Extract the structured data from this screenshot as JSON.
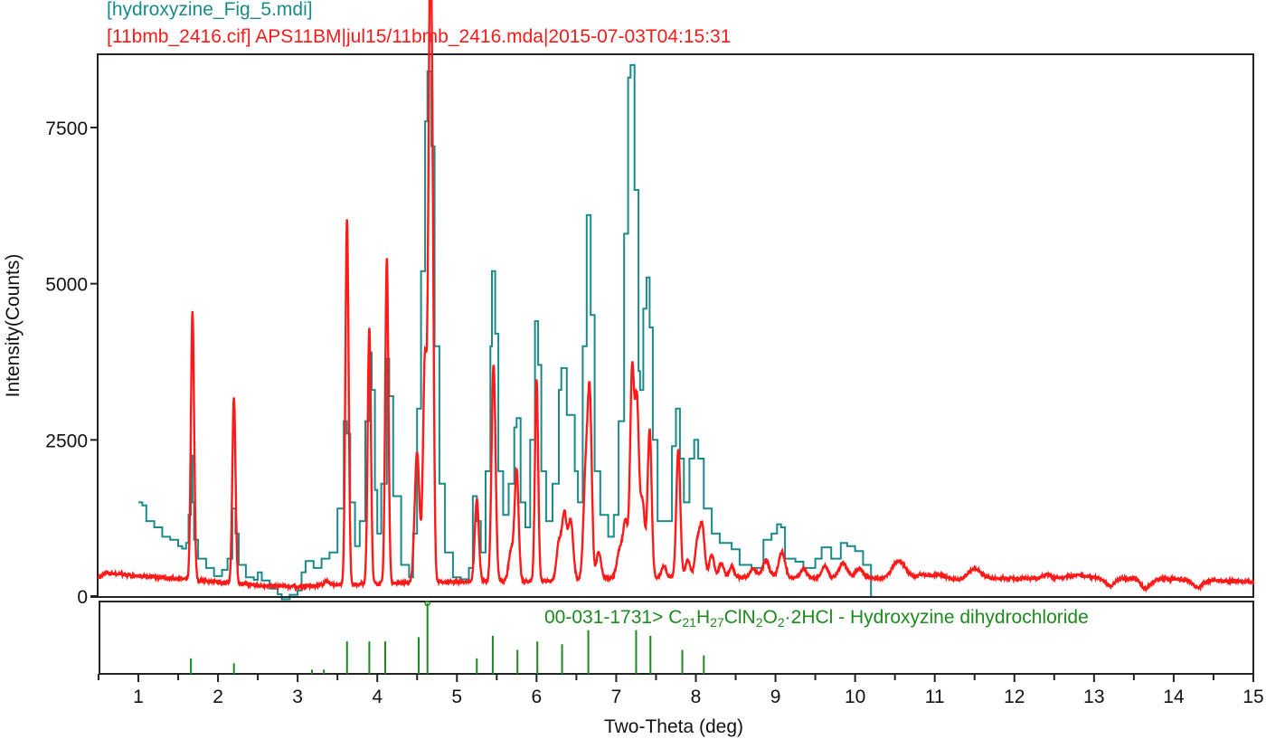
{
  "legend": {
    "teal_label": "[hydroxyzine_Fig_5.mdi]",
    "red_label": "[11bmb_2416.cif] APS11BM|jul15/11bmb_2416.mda|2015-07-03T04:15:31"
  },
  "reference": {
    "id": "00-031-1731>",
    "formula_parts": [
      "C",
      "21",
      "H",
      "27",
      "ClN",
      "2",
      "O",
      "2",
      "·2HCl - Hydroxyzine dihydrochloride"
    ]
  },
  "colors": {
    "teal": "#1a8a8a",
    "red": "#ff1a1a",
    "green": "#1c8a1c",
    "axis": "#111111"
  },
  "chart_data": {
    "type": "line",
    "title": "",
    "xlabel": "Two-Theta (deg)",
    "ylabel": "Intensity(Counts)",
    "xlim": [
      0.5,
      15
    ],
    "ylim": [
      0,
      8700
    ],
    "x_ticks": [
      1,
      2,
      3,
      4,
      5,
      6,
      7,
      8,
      9,
      10,
      11,
      12,
      13,
      14,
      15
    ],
    "y_ticks": [
      0,
      2500,
      5000,
      7500
    ],
    "grid": false,
    "legend_position": "top-left (above plot)",
    "series": [
      {
        "name": "[hydroxyzine_Fig_5.mdi]",
        "color": "#1a8a8a",
        "x_range": [
          1.0,
          10.2
        ],
        "points": [
          [
            1.0,
            1500
          ],
          [
            1.05,
            1450
          ],
          [
            1.1,
            1200
          ],
          [
            1.2,
            1100
          ],
          [
            1.3,
            950
          ],
          [
            1.4,
            900
          ],
          [
            1.5,
            800
          ],
          [
            1.55,
            760
          ],
          [
            1.6,
            850
          ],
          [
            1.63,
            1300
          ],
          [
            1.66,
            2250
          ],
          [
            1.68,
            1500
          ],
          [
            1.7,
            900
          ],
          [
            1.75,
            600
          ],
          [
            1.85,
            450
          ],
          [
            1.95,
            320
          ],
          [
            2.05,
            420
          ],
          [
            2.12,
            600
          ],
          [
            2.18,
            1400
          ],
          [
            2.22,
            1000
          ],
          [
            2.26,
            500
          ],
          [
            2.35,
            300
          ],
          [
            2.45,
            260
          ],
          [
            2.5,
            380
          ],
          [
            2.55,
            250
          ],
          [
            2.65,
            120
          ],
          [
            2.75,
            30
          ],
          [
            2.8,
            -50
          ],
          [
            2.9,
            20
          ],
          [
            3.0,
            90
          ],
          [
            3.05,
            380
          ],
          [
            3.1,
            560
          ],
          [
            3.2,
            450
          ],
          [
            3.3,
            600
          ],
          [
            3.4,
            700
          ],
          [
            3.5,
            1400
          ],
          [
            3.58,
            2800
          ],
          [
            3.62,
            2600
          ],
          [
            3.66,
            1500
          ],
          [
            3.72,
            800
          ],
          [
            3.78,
            1200
          ],
          [
            3.85,
            2800
          ],
          [
            3.9,
            3900
          ],
          [
            3.93,
            3300
          ],
          [
            3.97,
            1700
          ],
          [
            4.0,
            1000
          ],
          [
            4.05,
            1800
          ],
          [
            4.12,
            3800
          ],
          [
            4.15,
            3200
          ],
          [
            4.2,
            1600
          ],
          [
            4.3,
            500
          ],
          [
            4.4,
            300
          ],
          [
            4.45,
            1000
          ],
          [
            4.5,
            3000
          ],
          [
            4.55,
            5200
          ],
          [
            4.6,
            7600
          ],
          [
            4.63,
            8400
          ],
          [
            4.68,
            7200
          ],
          [
            4.72,
            4000
          ],
          [
            4.78,
            1800
          ],
          [
            4.85,
            700
          ],
          [
            4.95,
            300
          ],
          [
            5.05,
            270
          ],
          [
            5.15,
            450
          ],
          [
            5.2,
            1600
          ],
          [
            5.25,
            1200
          ],
          [
            5.3,
            700
          ],
          [
            5.36,
            2000
          ],
          [
            5.42,
            4000
          ],
          [
            5.44,
            5200
          ],
          [
            5.48,
            4200
          ],
          [
            5.52,
            2000
          ],
          [
            5.58,
            1300
          ],
          [
            5.65,
            1800
          ],
          [
            5.72,
            2700
          ],
          [
            5.75,
            2850
          ],
          [
            5.8,
            1500
          ],
          [
            5.86,
            1100
          ],
          [
            5.92,
            2500
          ],
          [
            5.98,
            4400
          ],
          [
            6.02,
            3700
          ],
          [
            6.06,
            2000
          ],
          [
            6.12,
            1200
          ],
          [
            6.2,
            1800
          ],
          [
            6.28,
            3300
          ],
          [
            6.31,
            3650
          ],
          [
            6.38,
            2900
          ],
          [
            6.48,
            2000
          ],
          [
            6.52,
            1500
          ],
          [
            6.58,
            4000
          ],
          [
            6.63,
            6100
          ],
          [
            6.68,
            4500
          ],
          [
            6.73,
            2000
          ],
          [
            6.8,
            1300
          ],
          [
            6.9,
            950
          ],
          [
            6.97,
            1300
          ],
          [
            7.03,
            2800
          ],
          [
            7.1,
            5800
          ],
          [
            7.15,
            8300
          ],
          [
            7.18,
            8500
          ],
          [
            7.23,
            6500
          ],
          [
            7.28,
            3600
          ],
          [
            7.3,
            3300
          ],
          [
            7.34,
            4600
          ],
          [
            7.38,
            5100
          ],
          [
            7.42,
            4300
          ],
          [
            7.46,
            2500
          ],
          [
            7.52,
            1200
          ],
          [
            7.6,
            1200
          ],
          [
            7.7,
            2400
          ],
          [
            7.75,
            3000
          ],
          [
            7.8,
            2200
          ],
          [
            7.85,
            1500
          ],
          [
            7.92,
            2200
          ],
          [
            7.98,
            2500
          ],
          [
            8.03,
            2200
          ],
          [
            8.1,
            1400
          ],
          [
            8.2,
            1000
          ],
          [
            8.3,
            850
          ],
          [
            8.45,
            750
          ],
          [
            8.55,
            500
          ],
          [
            8.7,
            450
          ],
          [
            8.85,
            900
          ],
          [
            8.95,
            1000
          ],
          [
            9.02,
            1150
          ],
          [
            9.07,
            1100
          ],
          [
            9.12,
            600
          ],
          [
            9.25,
            550
          ],
          [
            9.35,
            450
          ],
          [
            9.5,
            600
          ],
          [
            9.58,
            780
          ],
          [
            9.7,
            600
          ],
          [
            9.82,
            850
          ],
          [
            9.9,
            800
          ],
          [
            10.0,
            720
          ],
          [
            10.1,
            500
          ],
          [
            10.2,
            400
          ],
          [
            10.2,
            0
          ]
        ]
      },
      {
        "name": "[11bmb_2416.cif] APS11BM|jul15/11bmb_2416.mda|2015-07-03T04:15:31",
        "color": "#ff1a1a",
        "x_range": [
          0.5,
          15
        ],
        "baseline": [
          [
            0.5,
            300
          ],
          [
            0.6,
            370
          ],
          [
            1.0,
            320
          ],
          [
            1.5,
            280
          ],
          [
            2.0,
            220
          ],
          [
            2.5,
            170
          ],
          [
            3.0,
            150
          ],
          [
            3.5,
            180
          ],
          [
            4.0,
            200
          ],
          [
            5.0,
            230
          ],
          [
            6.0,
            240
          ],
          [
            7.0,
            280
          ],
          [
            8.0,
            300
          ],
          [
            9.0,
            300
          ],
          [
            10.0,
            280
          ],
          [
            11.0,
            300
          ],
          [
            12.0,
            280
          ],
          [
            13.0,
            300
          ],
          [
            14.0,
            270
          ],
          [
            15.0,
            230
          ]
        ],
        "peaks": [
          [
            1.68,
            4550,
            0.02
          ],
          [
            2.2,
            3200,
            0.02
          ],
          [
            3.36,
            250,
            0.03
          ],
          [
            3.62,
            6050,
            0.02
          ],
          [
            3.9,
            4300,
            0.02
          ],
          [
            4.12,
            5400,
            0.02
          ],
          [
            4.5,
            2300,
            0.03
          ],
          [
            4.6,
            3850,
            0.025
          ],
          [
            4.66,
            8250,
            0.02
          ],
          [
            4.69,
            5600,
            0.02
          ],
          [
            5.25,
            1550,
            0.025
          ],
          [
            5.46,
            3700,
            0.025
          ],
          [
            5.68,
            800,
            0.03
          ],
          [
            5.75,
            2000,
            0.025
          ],
          [
            6.0,
            3450,
            0.02
          ],
          [
            6.28,
            900,
            0.03
          ],
          [
            6.35,
            1300,
            0.03
          ],
          [
            6.43,
            1200,
            0.03
          ],
          [
            6.62,
            2000,
            0.03
          ],
          [
            6.67,
            2900,
            0.025
          ],
          [
            6.78,
            750,
            0.03
          ],
          [
            7.05,
            800,
            0.04
          ],
          [
            7.12,
            1100,
            0.03
          ],
          [
            7.2,
            3550,
            0.025
          ],
          [
            7.26,
            3000,
            0.025
          ],
          [
            7.33,
            1500,
            0.03
          ],
          [
            7.42,
            2650,
            0.025
          ],
          [
            7.6,
            500,
            0.03
          ],
          [
            7.78,
            2350,
            0.025
          ],
          [
            7.9,
            600,
            0.03
          ],
          [
            8.02,
            900,
            0.03
          ],
          [
            8.08,
            1100,
            0.03
          ],
          [
            8.2,
            700,
            0.03
          ],
          [
            8.32,
            550,
            0.03
          ],
          [
            8.45,
            500,
            0.03
          ],
          [
            8.72,
            450,
            0.04
          ],
          [
            8.88,
            600,
            0.04
          ],
          [
            9.08,
            750,
            0.04
          ],
          [
            9.35,
            450,
            0.04
          ],
          [
            9.62,
            500,
            0.04
          ],
          [
            9.85,
            550,
            0.05
          ],
          [
            10.05,
            450,
            0.05
          ],
          [
            10.55,
            600,
            0.08
          ],
          [
            10.85,
            350,
            0.06
          ],
          [
            11.05,
            350,
            0.06
          ],
          [
            11.3,
            250,
            0.06
          ],
          [
            11.5,
            450,
            0.08
          ],
          [
            12.4,
            350,
            0.05
          ],
          [
            12.78,
            350,
            0.08
          ],
          [
            13.2,
            150,
            0.06
          ],
          [
            13.65,
            100,
            0.06
          ],
          [
            14.3,
            120,
            0.06
          ]
        ]
      }
    ],
    "reference_pattern": {
      "label": "00-031-1731> C21H27ClN2O2·2HCl - Hydroxyzine dihydrochloride",
      "color": "#1c8a1c",
      "relative_heights_percent": [
        [
          1.66,
          22
        ],
        [
          2.2,
          15
        ],
        [
          3.18,
          6
        ],
        [
          3.33,
          6
        ],
        [
          3.62,
          46
        ],
        [
          3.9,
          46
        ],
        [
          4.1,
          46
        ],
        [
          4.52,
          52
        ],
        [
          4.63,
          100
        ],
        [
          5.25,
          22
        ],
        [
          5.45,
          54
        ],
        [
          5.76,
          34
        ],
        [
          6.01,
          46
        ],
        [
          6.32,
          42
        ],
        [
          6.65,
          62
        ],
        [
          7.25,
          62
        ],
        [
          7.43,
          54
        ],
        [
          7.83,
          34
        ],
        [
          8.1,
          26
        ]
      ]
    }
  }
}
